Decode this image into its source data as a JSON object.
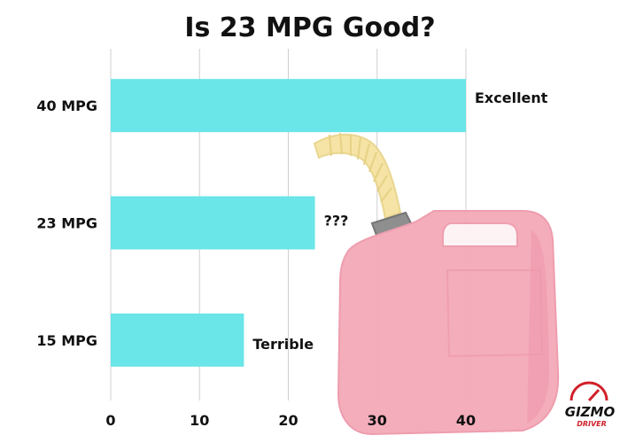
{
  "chart_data": {
    "type": "bar",
    "orientation": "horizontal",
    "title": "Is 23 MPG Good?",
    "categories": [
      "40 MPG",
      "23 MPG",
      "15 MPG"
    ],
    "values": [
      40,
      23,
      15
    ],
    "data_labels": [
      "Excellent",
      "???",
      "Terrible"
    ],
    "xlabel": "",
    "ylabel": "",
    "xlim": [
      0,
      40
    ],
    "xticks": [
      0,
      10,
      20,
      30,
      40
    ],
    "grid": true,
    "bar_color": "#6ae5e8",
    "grid_color": "#cfcfcf"
  },
  "decoration": {
    "image": "gas-can",
    "can_color": "#f4a9b8",
    "spout_color": "#f5e3a1"
  },
  "logo": {
    "text": "GIZMO",
    "subtext": "DRIVER",
    "accent_color": "#d0202a"
  }
}
